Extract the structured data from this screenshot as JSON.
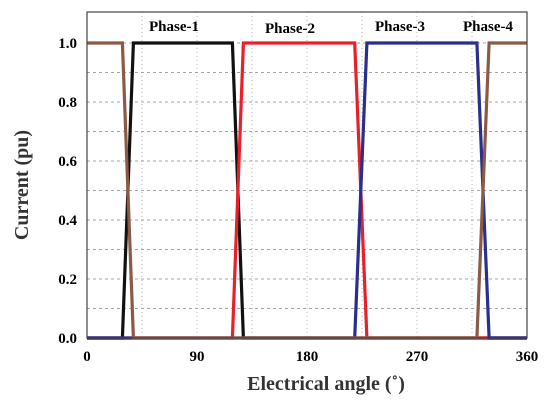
{
  "chart_data": {
    "type": "line",
    "xlabel": "Electrical angle (˚)",
    "ylabel": "Current (pu)",
    "xlim": [
      0,
      360
    ],
    "ylim": [
      0,
      1.1
    ],
    "xticks": [
      0,
      90,
      180,
      270,
      360
    ],
    "yticks": [
      0.0,
      0.2,
      0.4,
      0.6,
      0.8,
      1.0
    ],
    "xtick_labels": [
      "0",
      "90",
      "180",
      "270",
      "360"
    ],
    "ytick_labels": [
      "0.0",
      "0.2",
      "0.4",
      "0.6",
      "0.8",
      "1.0"
    ],
    "grid": true,
    "series": [
      {
        "name": "Phase-1",
        "color": "#111111",
        "x": [
          0,
          29,
          38,
          119,
          128,
          360
        ],
        "y": [
          0,
          0,
          1,
          1,
          0,
          0
        ],
        "label_at": [
          125,
          1.03
        ]
      },
      {
        "name": "Phase-2",
        "color": "#e8202a",
        "x": [
          0,
          119,
          128,
          219,
          229,
          360
        ],
        "y": [
          0,
          0,
          1,
          1,
          0,
          0
        ],
        "label_at": [
          225,
          1.02
        ]
      },
      {
        "name": "Phase-3",
        "color": "#2a2e8c",
        "x": [
          0,
          219,
          229,
          319,
          329,
          360
        ],
        "y": [
          0,
          0,
          1,
          1,
          0,
          0
        ],
        "label_at": [
          312,
          1.03
        ]
      },
      {
        "name": "Phase-4",
        "color": "#8b5a45",
        "x": [
          0,
          29,
          38,
          319,
          329,
          360
        ],
        "y": [
          1,
          1,
          0,
          0,
          1,
          1
        ],
        "label_at": [
          391,
          1.03
        ]
      }
    ]
  }
}
